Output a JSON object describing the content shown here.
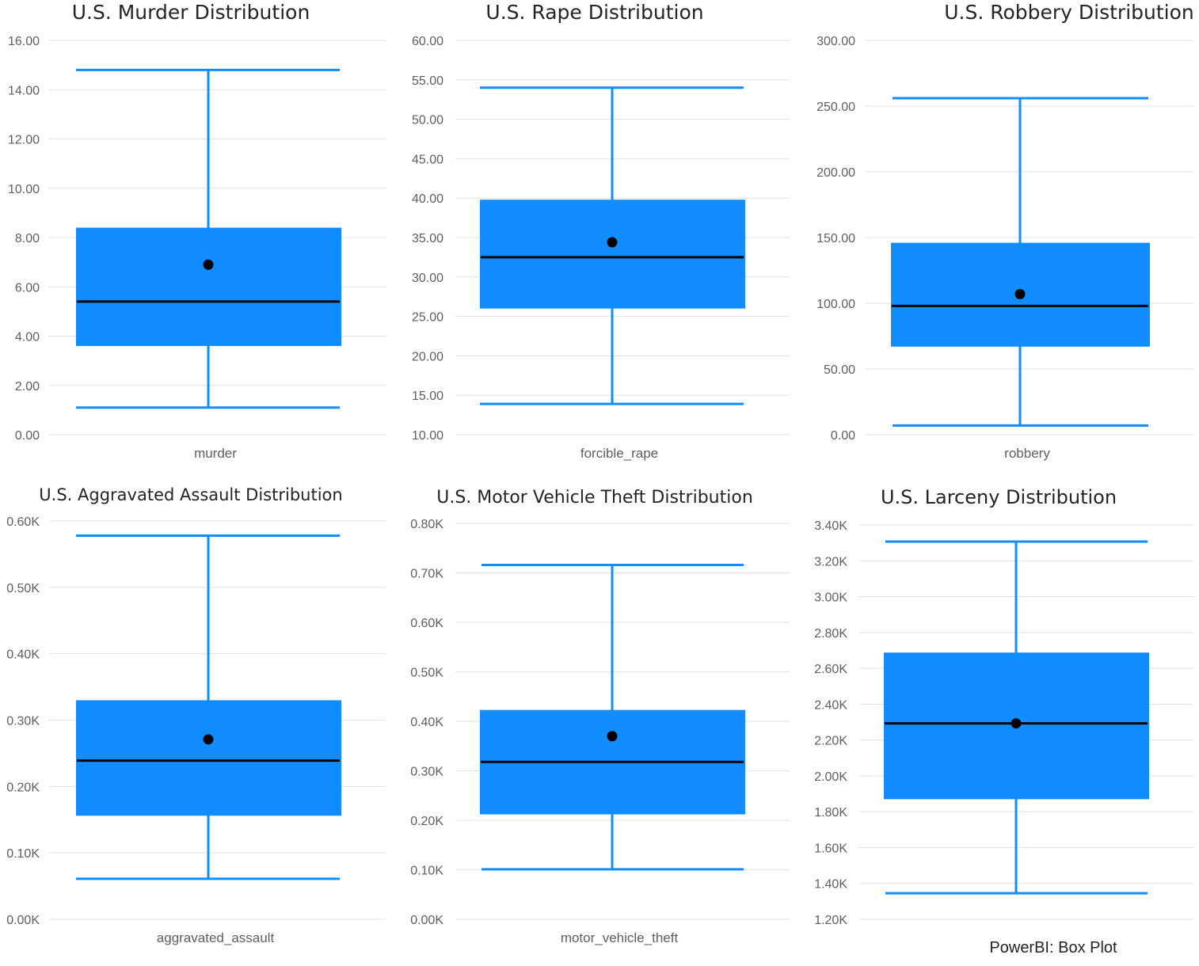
{
  "caption": "PowerBI: Box Plot",
  "colors": {
    "box": "#118dff",
    "median": "#000000",
    "mean": "#000000",
    "grid": "#e1e1e1",
    "tick_text": "#605e5c",
    "title_text": "#252423"
  },
  "chart_data": [
    {
      "type": "box",
      "title": "U.S. Murder Distribution",
      "category": "murder",
      "ylim": [
        0,
        16
      ],
      "ticks": [
        0,
        2,
        4,
        6,
        8,
        10,
        12,
        14,
        16
      ],
      "tick_labels": [
        "0.00",
        "2.00",
        "4.00",
        "6.00",
        "8.00",
        "10.00",
        "12.00",
        "14.00",
        "16.00"
      ],
      "whisker_low": 1.1,
      "q1": 3.6,
      "median": 5.4,
      "q3": 8.4,
      "whisker_high": 14.8,
      "mean": 6.9
    },
    {
      "type": "box",
      "title": "U.S. Rape Distribution",
      "category": "forcible_rape",
      "ylim": [
        10,
        60
      ],
      "ticks": [
        10,
        15,
        20,
        25,
        30,
        35,
        40,
        45,
        50,
        55,
        60
      ],
      "tick_labels": [
        "10.00",
        "15.00",
        "20.00",
        "25.00",
        "30.00",
        "35.00",
        "40.00",
        "45.00",
        "50.00",
        "55.00",
        "60.00"
      ],
      "whisker_low": 13.9,
      "q1": 26.0,
      "median": 32.5,
      "q3": 39.8,
      "whisker_high": 54.0,
      "mean": 34.4
    },
    {
      "type": "box",
      "title": "U.S. Robbery Distribution",
      "category": "robbery",
      "ylim": [
        0,
        300
      ],
      "ticks": [
        0,
        50,
        100,
        150,
        200,
        250,
        300
      ],
      "tick_labels": [
        "0.00",
        "50.00",
        "100.00",
        "150.00",
        "200.00",
        "250.00",
        "300.00"
      ],
      "whisker_low": 7,
      "q1": 67,
      "median": 98,
      "q3": 146,
      "whisker_high": 256,
      "mean": 107
    },
    {
      "type": "box",
      "title": "U.S. Aggravated Assault Distribution",
      "category": "aggravated_assault",
      "ylim": [
        0,
        600
      ],
      "ticks": [
        0,
        100,
        200,
        300,
        400,
        500,
        600
      ],
      "tick_labels": [
        "0.00K",
        "0.10K",
        "0.20K",
        "0.30K",
        "0.40K",
        "0.50K",
        "0.60K"
      ],
      "whisker_low": 61,
      "q1": 156,
      "median": 239,
      "q3": 330,
      "whisker_high": 578,
      "mean": 271
    },
    {
      "type": "box",
      "title": "U.S. Motor Vehicle Theft Distribution",
      "category": "motor_vehicle_theft",
      "ylim": [
        0,
        800
      ],
      "ticks": [
        0,
        100,
        200,
        300,
        400,
        500,
        600,
        700,
        800
      ],
      "tick_labels": [
        "0.00K",
        "0.10K",
        "0.20K",
        "0.30K",
        "0.40K",
        "0.50K",
        "0.60K",
        "0.70K",
        "0.80K"
      ],
      "whisker_low": 101,
      "q1": 212,
      "median": 318,
      "q3": 423,
      "whisker_high": 716,
      "mean": 370
    },
    {
      "type": "box",
      "title": "U.S. Larceny Distribution",
      "category": "",
      "ylim": [
        1200,
        3400
      ],
      "ticks": [
        1200,
        1400,
        1600,
        1800,
        2000,
        2200,
        2400,
        2600,
        2800,
        3000,
        3200,
        3400
      ],
      "tick_labels": [
        "1.20K",
        "1.40K",
        "1.60K",
        "1.80K",
        "2.00K",
        "2.20K",
        "2.40K",
        "2.60K",
        "2.80K",
        "3.00K",
        "3.20K",
        "3.40K"
      ],
      "whisker_low": 1345,
      "q1": 1870,
      "median": 2293,
      "q3": 2688,
      "whisker_high": 3307,
      "mean": 2293
    }
  ]
}
